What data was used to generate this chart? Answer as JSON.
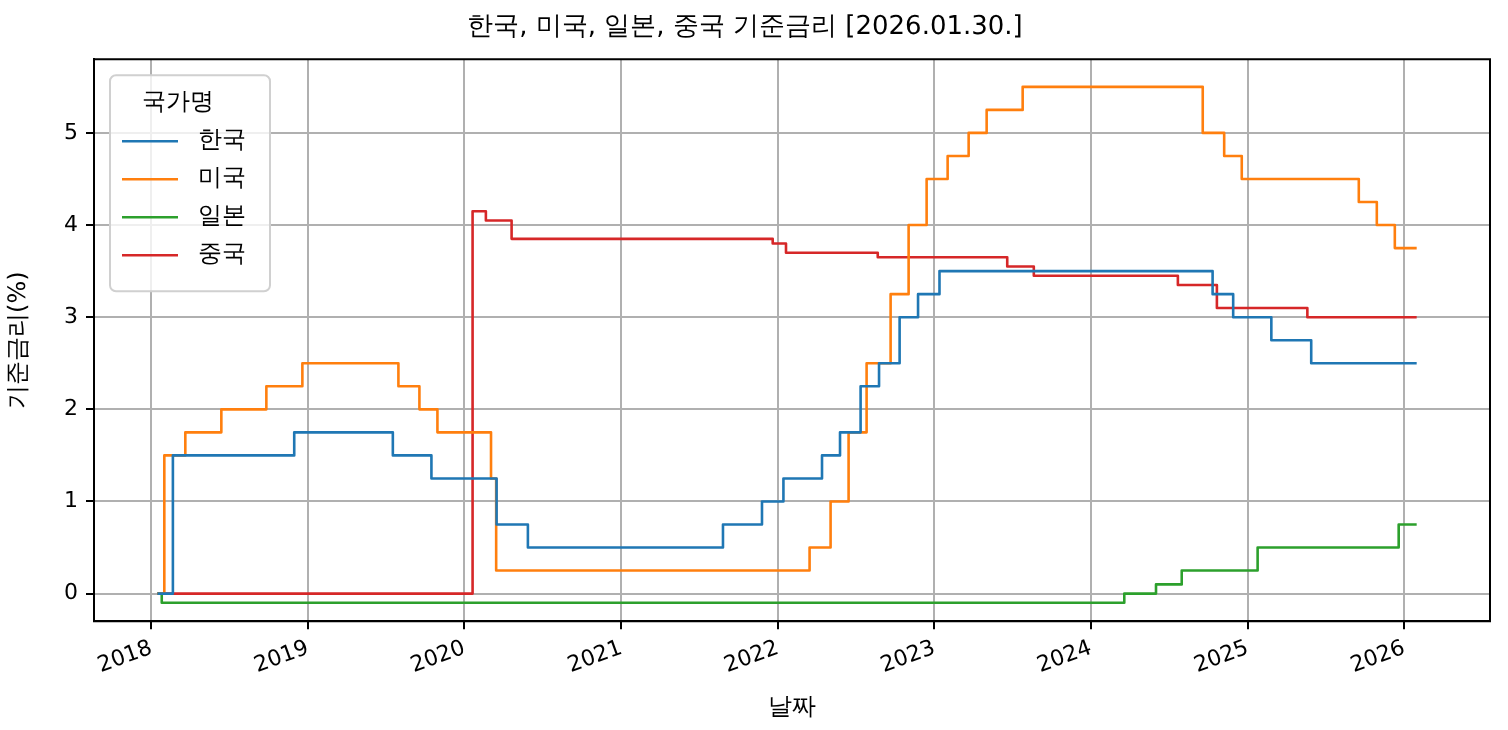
{
  "chart_data": {
    "type": "step",
    "title": "한국, 미국, 일본, 중국 기준금리 [2026.01.30.]",
    "xlabel": "날짜",
    "ylabel": "기준금리(%)",
    "legend_title": "국가명",
    "legend": "top left",
    "grid": true,
    "marker": "none",
    "line_style": "solid",
    "xlim": [
      "2017-08-20",
      "2026-07-20"
    ],
    "xticks": [
      {
        "value": "2018",
        "label": "2018"
      },
      {
        "value": "2019",
        "label": "2019"
      },
      {
        "value": "2020",
        "label": "2020"
      },
      {
        "value": "2021",
        "label": "2021"
      },
      {
        "value": "2022",
        "label": "2022"
      },
      {
        "value": "2023",
        "label": "2023"
      },
      {
        "value": "2024",
        "label": "2024"
      },
      {
        "value": "2025",
        "label": "2025"
      },
      {
        "value": "2026",
        "label": "2026"
      }
    ],
    "ylim": [
      -0.3,
      5.8
    ],
    "yticks": [
      0,
      1,
      2,
      3,
      4,
      5
    ],
    "series": [
      {
        "name": "한국",
        "color": "#1f77b4",
        "x": [
          "2018-01-15",
          "2018-02-20",
          "2018-11-30",
          "2019-07-18",
          "2019-10-16",
          "2020-03-16",
          "2020-05-28",
          "2021-08-26",
          "2021-11-25",
          "2022-01-14",
          "2022-04-14",
          "2022-05-26",
          "2022-07-13",
          "2022-08-25",
          "2022-10-12",
          "2022-11-24",
          "2023-01-13",
          "2024-10-11",
          "2024-11-28",
          "2025-02-25",
          "2025-05-29",
          "2026-01-30"
        ],
        "values": [
          0,
          1.5,
          1.75,
          1.5,
          1.25,
          0.75,
          0.5,
          0.75,
          1.0,
          1.25,
          1.5,
          1.75,
          2.25,
          2.5,
          3.0,
          3.25,
          3.5,
          3.25,
          3.0,
          2.75,
          2.5,
          2.5
        ]
      },
      {
        "name": "미국",
        "color": "#ff7f0e",
        "x": [
          "2018-01-15",
          "2018-01-31",
          "2018-03-21",
          "2018-06-13",
          "2018-09-26",
          "2018-12-19",
          "2019-07-31",
          "2019-09-18",
          "2019-10-30",
          "2020-03-03",
          "2020-03-15",
          "2022-03-16",
          "2022-05-04",
          "2022-06-15",
          "2022-07-27",
          "2022-09-21",
          "2022-11-02",
          "2022-12-14",
          "2023-02-01",
          "2023-03-22",
          "2023-05-03",
          "2023-07-26",
          "2024-09-18",
          "2024-11-07",
          "2024-12-18",
          "2025-09-17",
          "2025-10-29",
          "2025-12-10",
          "2026-01-30"
        ],
        "values": [
          0,
          1.5,
          1.75,
          2.0,
          2.25,
          2.5,
          2.25,
          2.0,
          1.75,
          1.25,
          0.25,
          0.5,
          1.0,
          1.75,
          2.5,
          3.25,
          4.0,
          4.5,
          4.75,
          5.0,
          5.25,
          5.5,
          5.0,
          4.75,
          4.5,
          4.25,
          4.0,
          3.75,
          3.75
        ]
      },
      {
        "name": "일본",
        "color": "#2ca02c",
        "x": [
          "2018-01-15",
          "2018-01-25",
          "2024-03-19",
          "2024-06-01",
          "2024-07-31",
          "2025-01-24",
          "2025-12-19",
          "2026-01-30"
        ],
        "values": [
          0,
          -0.1,
          0,
          0.1,
          0.25,
          0.5,
          0.75,
          0.75
        ]
      },
      {
        "name": "중국",
        "color": "#d62728",
        "x": [
          "2018-01-15",
          "2020-01-20",
          "2020-02-20",
          "2020-04-20",
          "2021-12-20",
          "2022-01-20",
          "2022-08-22",
          "2023-06-20",
          "2023-08-21",
          "2024-07-22",
          "2024-10-21",
          "2025-05-20",
          "2026-01-30"
        ],
        "values": [
          0,
          4.15,
          4.05,
          3.85,
          3.8,
          3.7,
          3.65,
          3.55,
          3.45,
          3.35,
          3.1,
          3.0,
          3.0
        ]
      }
    ]
  }
}
